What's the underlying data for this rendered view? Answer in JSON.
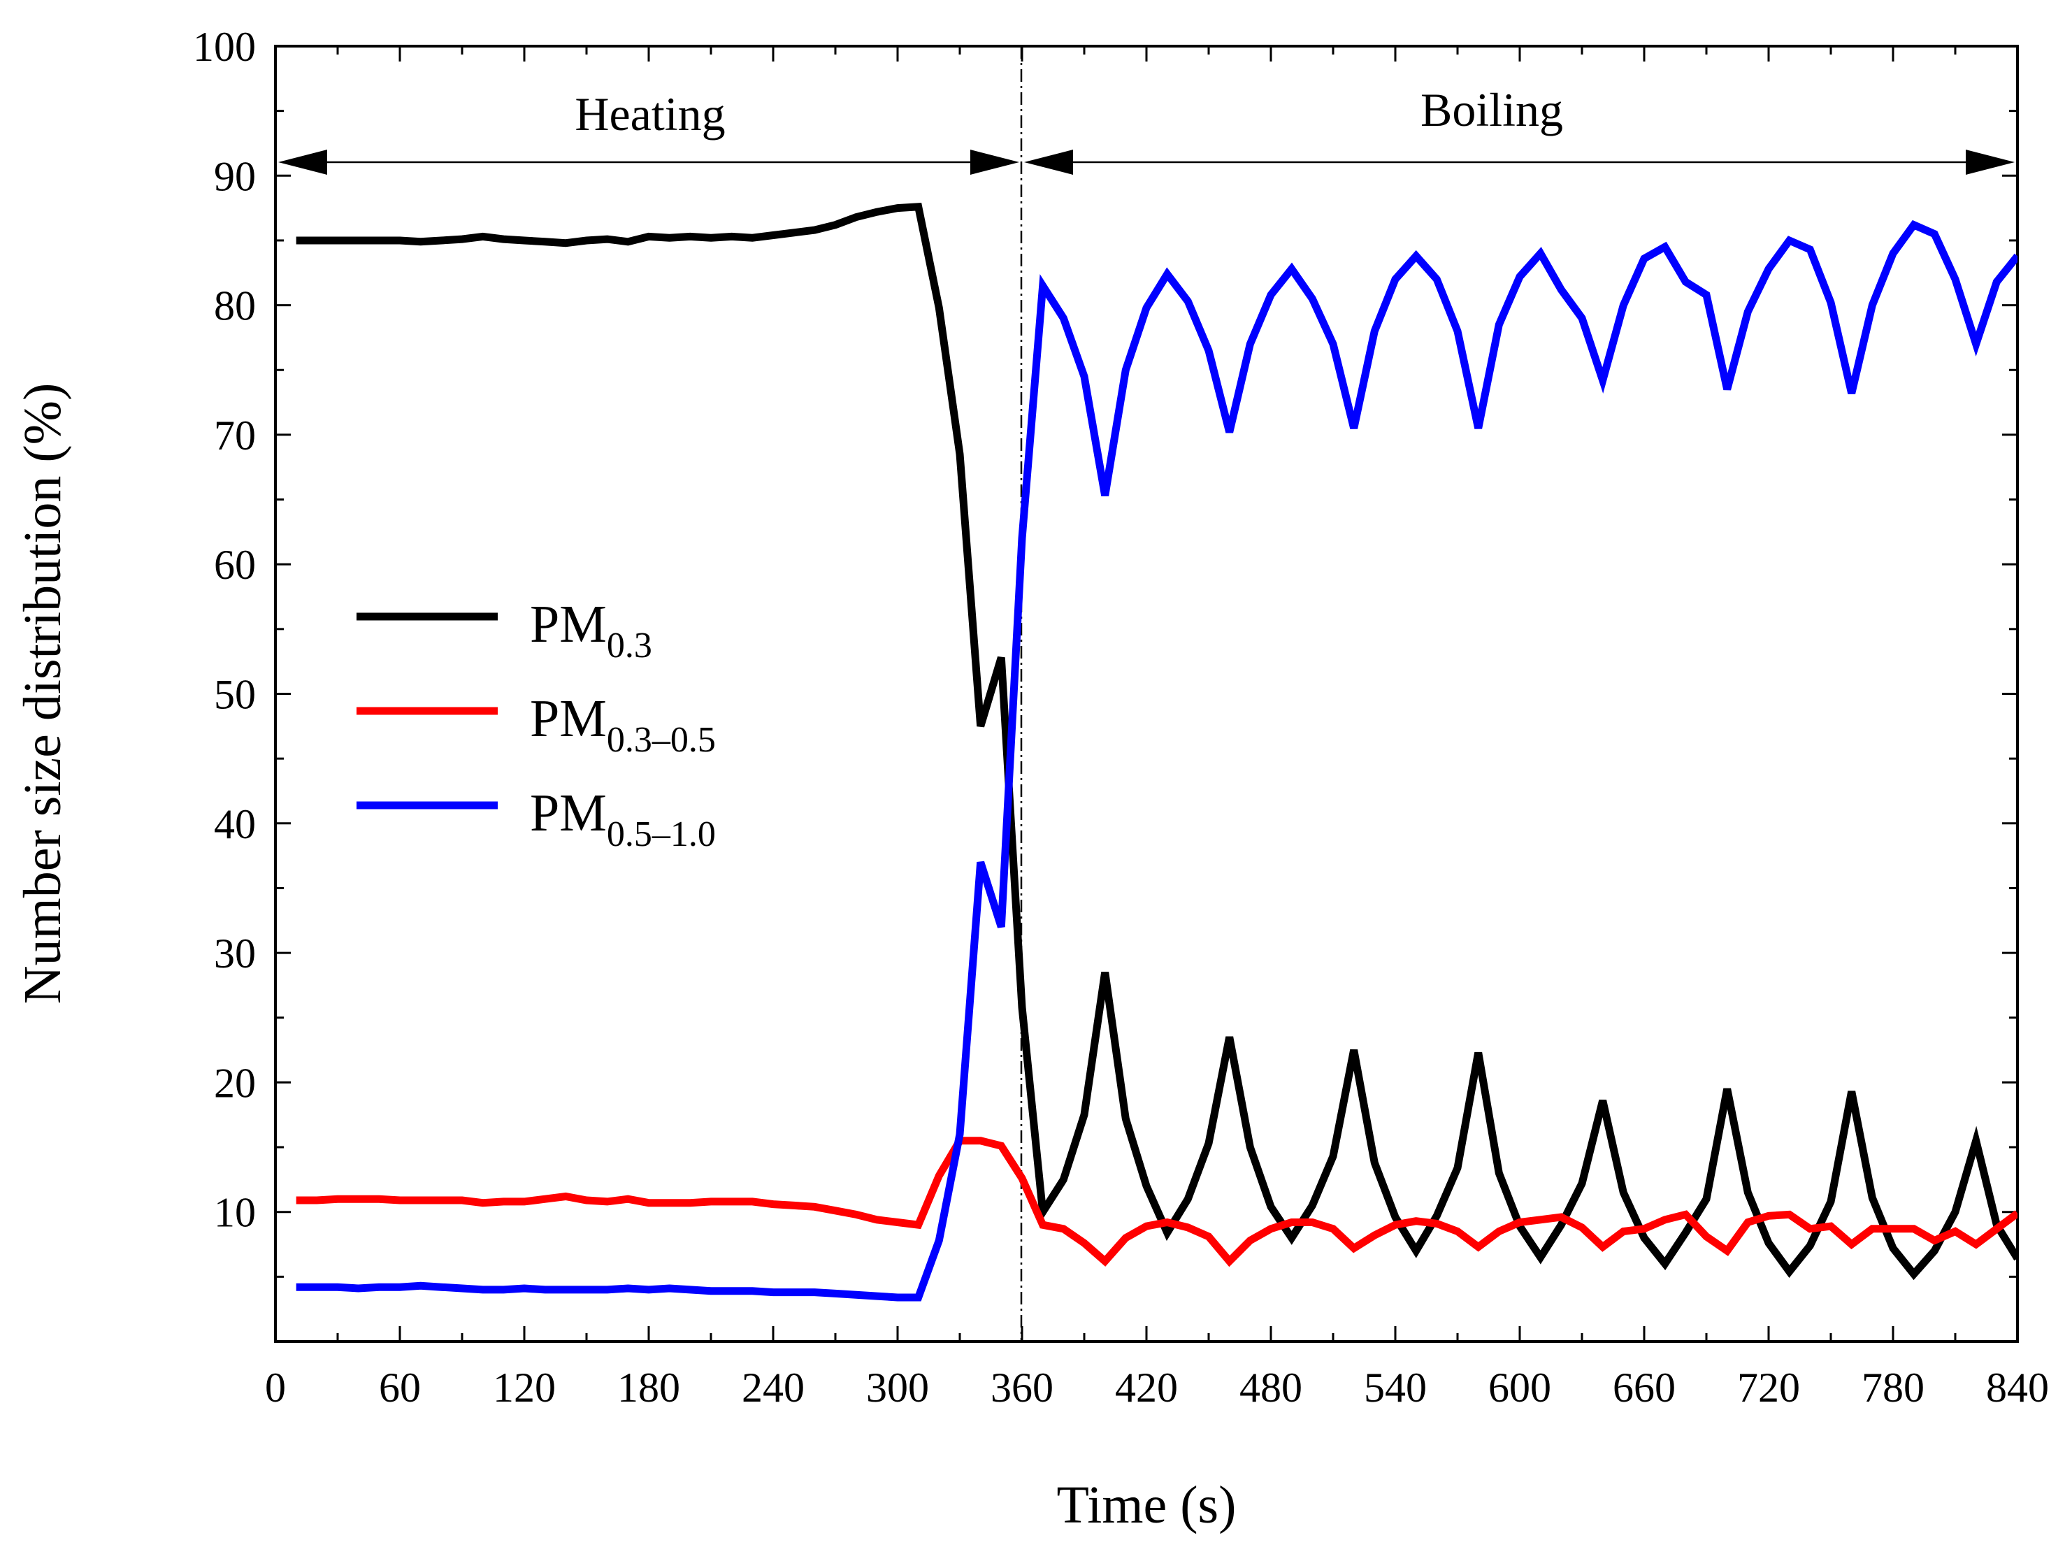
{
  "chart_data": {
    "type": "line",
    "xlabel": "Time (s)",
    "ylabel": "Number size distribution (%)",
    "xlim": [
      0,
      840
    ],
    "ylim": [
      0,
      100
    ],
    "xticks": [
      "0",
      "60",
      "120",
      "180",
      "240",
      "300",
      "360",
      "420",
      "480",
      "540",
      "600",
      "660",
      "720",
      "780",
      "840"
    ],
    "yticks": [
      "10",
      "20",
      "30",
      "40",
      "50",
      "60",
      "70",
      "80",
      "90",
      "100"
    ],
    "annotations": {
      "heating": "Heating",
      "boiling": "Boiling",
      "divider_x": 360,
      "arrow_y": 90
    },
    "series": [
      {
        "name": "PM",
        "subscript": "0.3",
        "color": "#000000",
        "x": [
          10,
          20,
          30,
          40,
          50,
          60,
          70,
          80,
          90,
          100,
          110,
          120,
          130,
          140,
          150,
          160,
          170,
          180,
          190,
          200,
          210,
          220,
          230,
          240,
          250,
          260,
          270,
          280,
          290,
          300,
          310,
          320,
          330,
          340,
          350,
          360,
          370,
          380,
          390,
          400,
          410,
          420,
          430,
          440,
          450,
          460,
          470,
          480,
          490,
          500,
          510,
          520,
          530,
          540,
          550,
          560,
          570,
          580,
          590,
          600,
          610,
          620,
          630,
          640,
          650,
          660,
          670,
          680,
          690,
          700,
          710,
          720,
          730,
          740,
          750,
          760,
          770,
          780,
          790,
          800,
          810,
          820,
          830,
          840
        ],
        "values": [
          85,
          85,
          85,
          85,
          85,
          85,
          84.9,
          85,
          85.1,
          85.3,
          85.1,
          85,
          84.9,
          84.8,
          85,
          85.1,
          84.9,
          85.3,
          85.2,
          85.3,
          85.2,
          85.3,
          85.2,
          85.4,
          85.6,
          85.8,
          86.2,
          86.8,
          87.2,
          87.5,
          87.6,
          79.8,
          68.5,
          47.5,
          52.8,
          25.8,
          10,
          12.5,
          17.5,
          28.5,
          17.2,
          12,
          8.4,
          11,
          15.3,
          23.5,
          15,
          10.4,
          8,
          10.5,
          14.3,
          22.5,
          13.8,
          9.6,
          7,
          9.7,
          13.4,
          22.3,
          13,
          8.9,
          6.5,
          9,
          12.2,
          18.6,
          11.5,
          8,
          6,
          8.4,
          11,
          19.5,
          11.5,
          7.6,
          5.4,
          7.4,
          10.8,
          19.3,
          11.1,
          7.2,
          5.2,
          7,
          10,
          15.5,
          9,
          6.4
        ]
      },
      {
        "name": "PM",
        "subscript": "0.3–0.5",
        "color": "#ff0000",
        "x": [
          10,
          20,
          30,
          40,
          50,
          60,
          70,
          80,
          90,
          100,
          110,
          120,
          130,
          140,
          150,
          160,
          170,
          180,
          190,
          200,
          210,
          220,
          230,
          240,
          250,
          260,
          270,
          280,
          290,
          300,
          310,
          320,
          330,
          340,
          350,
          360,
          370,
          380,
          390,
          400,
          410,
          420,
          430,
          440,
          450,
          460,
          470,
          480,
          490,
          500,
          510,
          520,
          530,
          540,
          550,
          560,
          570,
          580,
          590,
          600,
          610,
          620,
          630,
          640,
          650,
          660,
          670,
          680,
          690,
          700,
          710,
          720,
          730,
          740,
          750,
          760,
          770,
          780,
          790,
          800,
          810,
          820,
          830,
          840
        ],
        "values": [
          10.9,
          10.9,
          11,
          11,
          11,
          10.9,
          10.9,
          10.9,
          10.9,
          10.7,
          10.8,
          10.8,
          11,
          11.2,
          10.9,
          10.8,
          11,
          10.7,
          10.7,
          10.7,
          10.8,
          10.8,
          10.8,
          10.6,
          10.5,
          10.4,
          10.1,
          9.8,
          9.4,
          9.2,
          9,
          12.8,
          15.5,
          15.5,
          15.1,
          12.6,
          9,
          8.7,
          7.6,
          6.2,
          8,
          8.9,
          9.2,
          8.8,
          8.1,
          6.2,
          7.8,
          8.7,
          9.2,
          9.2,
          8.7,
          7.2,
          8.2,
          9,
          9.3,
          9.1,
          8.5,
          7.3,
          8.5,
          9.2,
          9.4,
          9.6,
          8.8,
          7.3,
          8.5,
          8.7,
          9.4,
          9.8,
          8.1,
          7,
          9.2,
          9.7,
          9.8,
          8.7,
          8.9,
          7.5,
          8.7,
          8.7,
          8.7,
          7.8,
          8.5,
          7.5,
          8.7,
          9.9
        ]
      },
      {
        "name": "PM",
        "subscript": "0.5–1.0",
        "color": "#0000ff",
        "x": [
          10,
          20,
          30,
          40,
          50,
          60,
          70,
          80,
          90,
          100,
          110,
          120,
          130,
          140,
          150,
          160,
          170,
          180,
          190,
          200,
          210,
          220,
          230,
          240,
          250,
          260,
          270,
          280,
          290,
          300,
          310,
          320,
          330,
          340,
          350,
          360,
          370,
          380,
          390,
          400,
          410,
          420,
          430,
          440,
          450,
          460,
          470,
          480,
          490,
          500,
          510,
          520,
          530,
          540,
          550,
          560,
          570,
          580,
          590,
          600,
          610,
          620,
          630,
          640,
          650,
          660,
          670,
          680,
          690,
          700,
          710,
          720,
          730,
          740,
          750,
          760,
          770,
          780,
          790,
          800,
          810,
          820,
          830,
          840
        ],
        "values": [
          4.2,
          4.2,
          4.2,
          4.1,
          4.2,
          4.2,
          4.3,
          4.2,
          4.1,
          4,
          4,
          4.1,
          4,
          4,
          4,
          4,
          4.1,
          4,
          4.1,
          4,
          3.9,
          3.9,
          3.9,
          3.8,
          3.8,
          3.8,
          3.7,
          3.6,
          3.5,
          3.4,
          3.4,
          7.8,
          16,
          37,
          32,
          62,
          81.5,
          79,
          74.5,
          65.3,
          75,
          79.8,
          82.4,
          80.3,
          76.5,
          70.2,
          77,
          80.8,
          82.8,
          80.5,
          77,
          70.5,
          78,
          82,
          83.8,
          82,
          78,
          70.5,
          78.5,
          82.2,
          84,
          81.2,
          79,
          74.2,
          80,
          83.6,
          84.5,
          81.8,
          80.8,
          73.5,
          79.5,
          82.8,
          85,
          84.3,
          80.2,
          73.2,
          80,
          84,
          86.2,
          85.5,
          82,
          77,
          81.8,
          83.8
        ]
      }
    ]
  }
}
